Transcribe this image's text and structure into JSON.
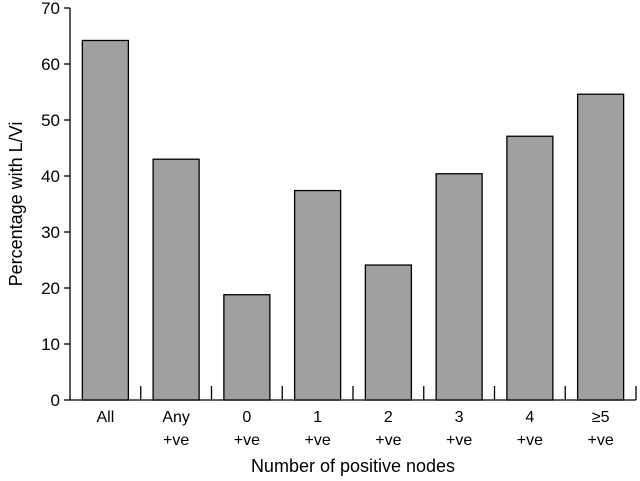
{
  "chart_data": {
    "type": "bar",
    "categories": [
      [
        "All",
        ""
      ],
      [
        "Any",
        "+ve"
      ],
      [
        "0",
        "+ve"
      ],
      [
        "1",
        "+ve"
      ],
      [
        "2",
        "+ve"
      ],
      [
        "3",
        "+ve"
      ],
      [
        "4",
        "+ve"
      ],
      [
        "≥5",
        "+ve"
      ]
    ],
    "values": [
      64.2,
      43.0,
      18.8,
      37.4,
      24.1,
      40.4,
      47.1,
      54.6
    ],
    "xlabel": "Number of positive nodes",
    "ylabel": "Percentage with L/Vi",
    "ylim": [
      0,
      70
    ],
    "yticks": [
      0,
      10,
      20,
      30,
      40,
      50,
      60,
      70
    ],
    "grid": false,
    "bar_color": "#a0a0a0",
    "edge_color": "#000000"
  }
}
